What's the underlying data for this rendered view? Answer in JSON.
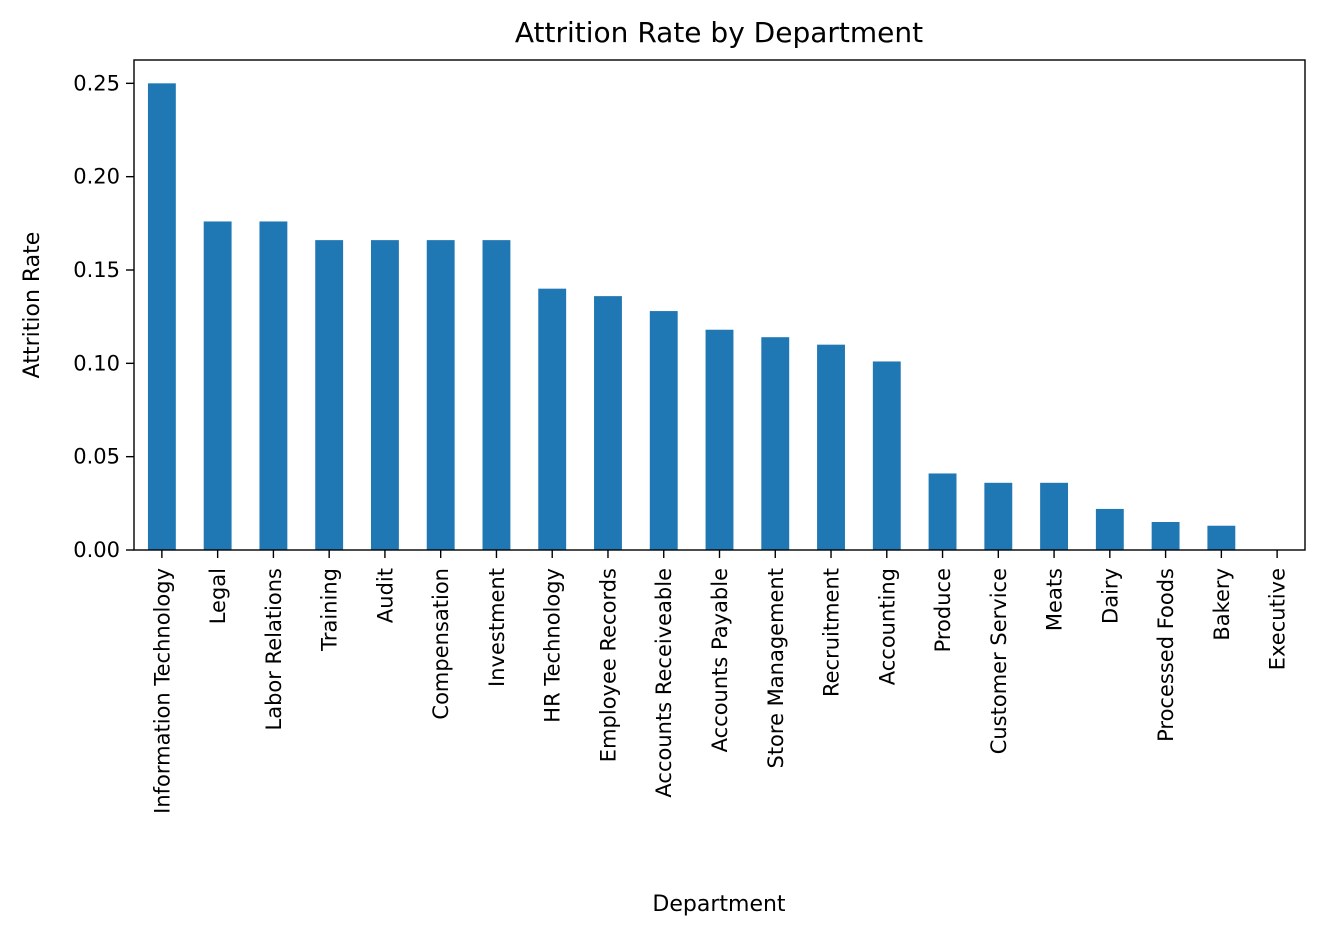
{
  "chart_data": {
    "type": "bar",
    "title": "Attrition Rate by Department",
    "xlabel": "Department",
    "ylabel": "Attrition Rate",
    "ylim": [
      0,
      0.2625
    ],
    "yticks": [
      "0.00",
      "0.05",
      "0.10",
      "0.15",
      "0.20",
      "0.25"
    ],
    "grid": false,
    "legend": "none",
    "bar_color": "#1f77b4",
    "categories": [
      "Information Technology",
      "Legal",
      "Labor Relations",
      "Training",
      "Audit",
      "Compensation",
      "Investment",
      "HR Technology",
      "Employee Records",
      "Accounts Receiveable",
      "Accounts Payable",
      "Store Management",
      "Recruitment",
      "Accounting",
      "Produce",
      "Customer Service",
      "Meats",
      "Dairy",
      "Processed Foods",
      "Bakery",
      "Executive"
    ],
    "values": [
      0.25,
      0.176,
      0.176,
      0.166,
      0.166,
      0.166,
      0.166,
      0.14,
      0.136,
      0.128,
      0.118,
      0.114,
      0.11,
      0.101,
      0.041,
      0.036,
      0.036,
      0.022,
      0.015,
      0.013,
      0.0
    ]
  }
}
